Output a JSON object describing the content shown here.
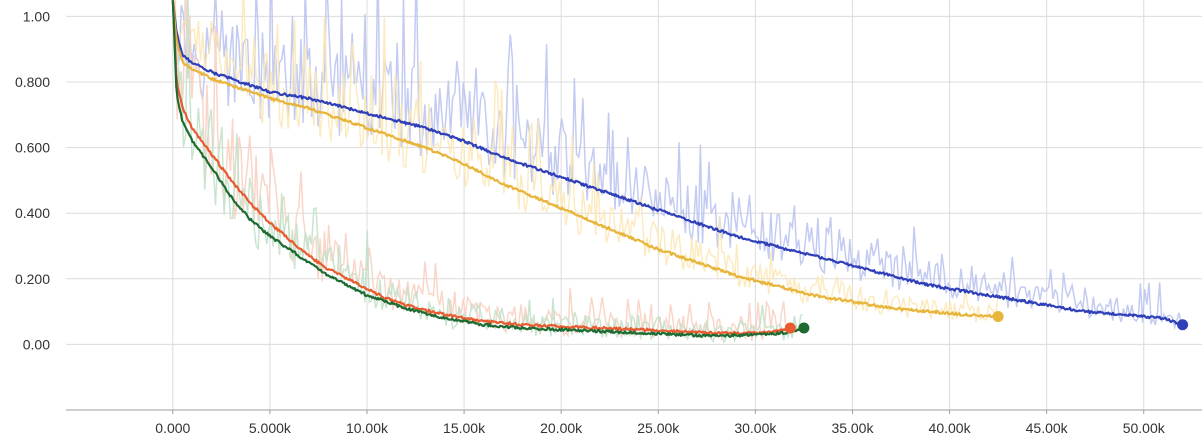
{
  "chart_data": {
    "type": "line",
    "xlim": [
      -5500,
      53000
    ],
    "ylim": [
      -0.2,
      1.05
    ],
    "grid": true,
    "x_ticks": [
      {
        "value": 0,
        "label": "0.000"
      },
      {
        "value": 5000,
        "label": "5.000k"
      },
      {
        "value": 10000,
        "label": "10.00k"
      },
      {
        "value": 15000,
        "label": "15.00k"
      },
      {
        "value": 20000,
        "label": "20.00k"
      },
      {
        "value": 25000,
        "label": "25.00k"
      },
      {
        "value": 30000,
        "label": "30.00k"
      },
      {
        "value": 35000,
        "label": "35.00k"
      },
      {
        "value": 40000,
        "label": "40.00k"
      },
      {
        "value": 45000,
        "label": "45.00k"
      },
      {
        "value": 50000,
        "label": "50.00k"
      }
    ],
    "y_ticks": [
      {
        "value": 1.0,
        "label": "1.00"
      },
      {
        "value": 0.8,
        "label": "0.800"
      },
      {
        "value": 0.6,
        "label": "0.600"
      },
      {
        "value": 0.4,
        "label": "0.400"
      },
      {
        "value": 0.2,
        "label": "0.200"
      },
      {
        "value": 0.0,
        "label": "0.00"
      }
    ],
    "series": [
      {
        "color": "#2f3fb8",
        "raw_color": "#b9c2f0",
        "x": [
          0,
          200,
          500,
          1000,
          2000,
          3000,
          5000,
          7000,
          9000,
          11000,
          13000,
          15000,
          17000,
          19000,
          21000,
          23000,
          25000,
          27000,
          29000,
          31000,
          33000,
          35000,
          37000,
          39000,
          41000,
          43000,
          45000,
          47000,
          49000,
          51000,
          52000
        ],
        "values": [
          1.05,
          0.95,
          0.88,
          0.86,
          0.83,
          0.81,
          0.77,
          0.75,
          0.72,
          0.69,
          0.66,
          0.62,
          0.57,
          0.53,
          0.49,
          0.45,
          0.41,
          0.37,
          0.33,
          0.3,
          0.27,
          0.24,
          0.21,
          0.18,
          0.16,
          0.14,
          0.12,
          0.1,
          0.09,
          0.08,
          0.06
        ],
        "noise": 0.14
      },
      {
        "color": "#e8b53b",
        "raw_color": "#fbe7b5",
        "x": [
          0,
          200,
          500,
          1000,
          2000,
          3000,
          5000,
          7000,
          9000,
          11000,
          13000,
          15000,
          17000,
          19000,
          21000,
          23000,
          25000,
          27000,
          29000,
          31000,
          33000,
          35000,
          37000,
          39000,
          41000,
          42500
        ],
        "values": [
          1.05,
          0.92,
          0.86,
          0.84,
          0.81,
          0.79,
          0.75,
          0.72,
          0.68,
          0.64,
          0.6,
          0.55,
          0.49,
          0.44,
          0.39,
          0.34,
          0.29,
          0.25,
          0.21,
          0.18,
          0.15,
          0.13,
          0.11,
          0.1,
          0.09,
          0.085
        ],
        "noise": 0.12
      },
      {
        "color": "#e85b30",
        "raw_color": "#f8cfc0",
        "x": [
          0,
          200,
          500,
          1000,
          2000,
          3000,
          4000,
          5000,
          6000,
          7000,
          8000,
          9000,
          10000,
          11000,
          12000,
          14000,
          16000,
          18000,
          20000,
          22000,
          24000,
          26000,
          28000,
          30000,
          31000,
          31800
        ],
        "values": [
          1.05,
          0.8,
          0.72,
          0.66,
          0.58,
          0.5,
          0.43,
          0.37,
          0.32,
          0.27,
          0.23,
          0.2,
          0.17,
          0.14,
          0.12,
          0.09,
          0.07,
          0.06,
          0.055,
          0.05,
          0.045,
          0.04,
          0.035,
          0.035,
          0.04,
          0.05
        ],
        "noise": 0.18
      },
      {
        "color": "#1e6b32",
        "raw_color": "#bfe0c8",
        "x": [
          0,
          200,
          500,
          1000,
          2000,
          3000,
          4000,
          5000,
          6000,
          7000,
          8000,
          9000,
          10000,
          11000,
          12000,
          14000,
          16000,
          18000,
          20000,
          22000,
          24000,
          26000,
          28000,
          30000,
          31500,
          32500
        ],
        "values": [
          1.05,
          0.76,
          0.68,
          0.62,
          0.54,
          0.45,
          0.38,
          0.33,
          0.29,
          0.25,
          0.21,
          0.18,
          0.15,
          0.13,
          0.11,
          0.08,
          0.06,
          0.05,
          0.045,
          0.04,
          0.035,
          0.03,
          0.025,
          0.03,
          0.035,
          0.05
        ],
        "noise": 0.16
      }
    ]
  }
}
